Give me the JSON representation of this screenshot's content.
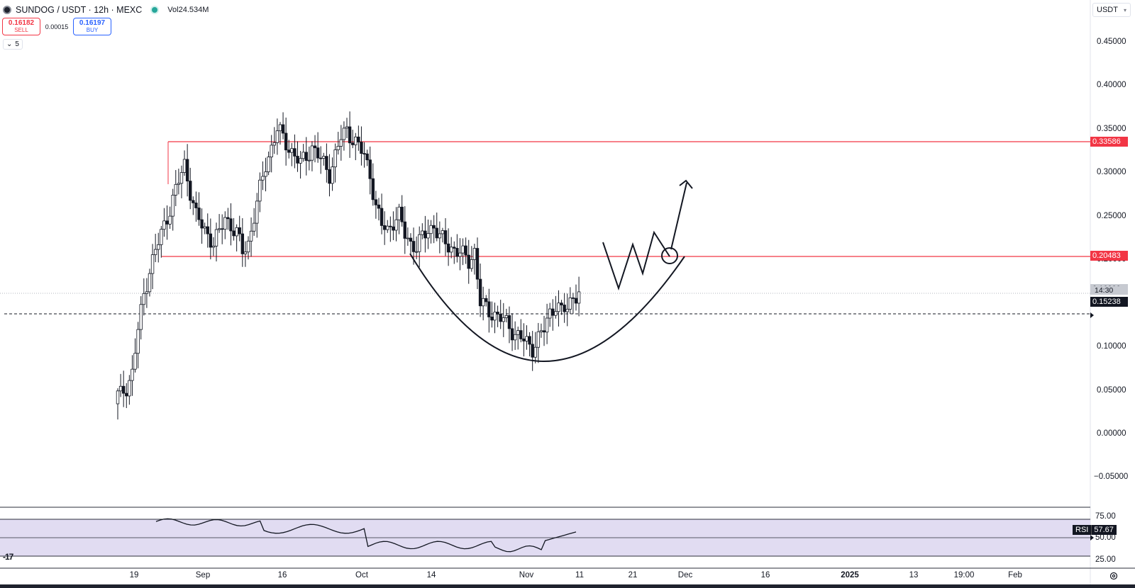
{
  "header": {
    "symbol_title": "SUNDOG / USDT · 12h · MEXC",
    "volume_label": "Vol",
    "volume_value": "24.534M",
    "sell_price": "0.16182",
    "sell_label": "SELL",
    "spread": "0.00015",
    "buy_price": "0.16197",
    "buy_label": "BUY",
    "collapsed_count": "5",
    "currency": "USDT"
  },
  "price_axis": {
    "ticks": [
      "0.45000",
      "0.40000",
      "0.35000",
      "0.30000",
      "0.25000",
      "0.20000",
      "0.15000",
      "0.10000",
      "0.05000",
      "0.00000",
      "−0.05000"
    ],
    "tick_values": [
      0.45,
      0.4,
      0.35,
      0.3,
      0.25,
      0.2,
      0.15,
      0.1,
      0.05,
      0.0,
      -0.05
    ],
    "resistance_label": "0.33586",
    "resistance_value": 0.33586,
    "support_label": "0.20483",
    "support_value": 0.20483,
    "last_price_label": "0.16200",
    "last_price_value": 0.162,
    "countdown": "14:30",
    "prev_close_label": "0.15238",
    "prev_close_value": 0.15238
  },
  "rsi": {
    "name": "RSI",
    "value": "57.67",
    "ticks": [
      "75.00",
      "50.00",
      "25.00"
    ],
    "upper_band": 70,
    "lower_band": 30
  },
  "time_axis": {
    "labels": [
      "19",
      "Sep",
      "16",
      "Oct",
      "14",
      "Nov",
      "11",
      "21",
      "Dec",
      "16",
      "2025",
      "13",
      "19:00",
      "Feb"
    ]
  },
  "chart_data": {
    "type": "candlestick",
    "title": "SUNDOG / USDT · 12h · MEXC",
    "x_range": [
      "Aug 19 2024",
      "Feb 2025"
    ],
    "y_range": [
      -0.06,
      0.49
    ],
    "close_path": [
      0.045,
      0.055,
      0.07,
      0.12,
      0.16,
      0.19,
      0.21,
      0.23,
      0.25,
      0.27,
      0.29,
      0.31,
      0.28,
      0.25,
      0.24,
      0.23,
      0.22,
      0.23,
      0.25,
      0.24,
      0.23,
      0.21,
      0.22,
      0.25,
      0.28,
      0.31,
      0.33,
      0.35,
      0.34,
      0.33,
      0.32,
      0.31,
      0.32,
      0.33,
      0.32,
      0.31,
      0.3,
      0.32,
      0.34,
      0.35,
      0.34,
      0.33,
      0.32,
      0.3,
      0.26,
      0.24,
      0.235,
      0.245,
      0.25,
      0.23,
      0.22,
      0.215,
      0.225,
      0.235,
      0.24,
      0.225,
      0.22,
      0.215,
      0.21,
      0.205,
      0.2,
      0.21,
      0.15,
      0.145,
      0.14,
      0.135,
      0.13,
      0.125,
      0.115,
      0.11,
      0.105,
      0.1,
      0.11,
      0.12,
      0.14,
      0.15,
      0.14,
      0.145,
      0.16,
      0.162
    ],
    "projection_annotation": "W pattern break above support with target arrow",
    "rounded_bottom_annotation": "cup arc from 0.205 down to 0.085 and back"
  },
  "colors": {
    "up": "#ffffff",
    "down": "#131722",
    "level_line": "#f23645",
    "rsi_band": "#7e57c2"
  }
}
